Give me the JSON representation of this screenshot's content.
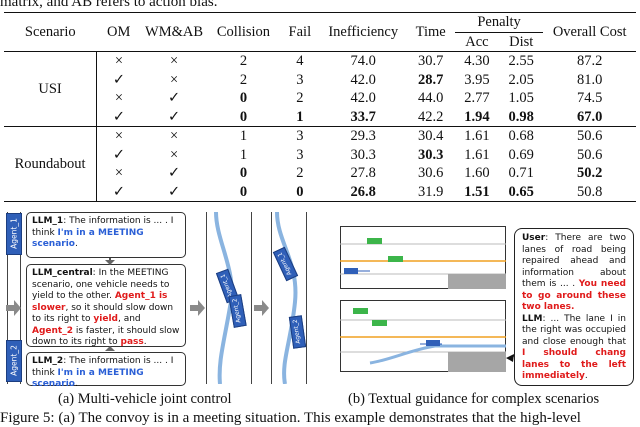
{
  "header_fragment": "matrix, and AB refers to action bias.",
  "table": {
    "headers": {
      "scenario": "Scenario",
      "om": "OM",
      "wmab": "WM&AB",
      "collision": "Collision",
      "fail": "Fail",
      "inefficiency": "Inefficiency",
      "time": "Time",
      "penalty": "Penalty",
      "acc": "Acc",
      "dist": "Dist",
      "overall": "Overall Cost"
    },
    "groups": [
      {
        "name": "USI",
        "rows": [
          {
            "om": "×",
            "wmab": "×",
            "collision": "2",
            "fail": "4",
            "inefficiency": "74.0",
            "time": "30.7",
            "acc": "4.30",
            "dist": "2.55",
            "overall": "87.2"
          },
          {
            "om": "✓",
            "wmab": "×",
            "collision": "2",
            "fail": "3",
            "inefficiency": "42.0",
            "time": "28.7",
            "acc": "3.95",
            "dist": "2.05",
            "overall": "81.0"
          },
          {
            "om": "×",
            "wmab": "✓",
            "collision": "0",
            "fail": "2",
            "inefficiency": "42.0",
            "time": "44.0",
            "acc": "2.77",
            "dist": "1.05",
            "overall": "74.5"
          },
          {
            "om": "✓",
            "wmab": "✓",
            "collision": "0",
            "fail": "1",
            "inefficiency": "33.7",
            "time": "42.2",
            "acc": "1.94",
            "dist": "0.98",
            "overall": "67.0"
          }
        ]
      },
      {
        "name": "Roundabout",
        "rows": [
          {
            "om": "×",
            "wmab": "×",
            "collision": "1",
            "fail": "3",
            "inefficiency": "29.3",
            "time": "30.4",
            "acc": "1.61",
            "dist": "0.68",
            "overall": "50.6"
          },
          {
            "om": "✓",
            "wmab": "×",
            "collision": "1",
            "fail": "3",
            "inefficiency": "30.3",
            "time": "30.3",
            "acc": "1.61",
            "dist": "0.69",
            "overall": "50.6"
          },
          {
            "om": "×",
            "wmab": "✓",
            "collision": "0",
            "fail": "2",
            "inefficiency": "27.8",
            "time": "30.6",
            "acc": "1.60",
            "dist": "0.71",
            "overall": "50.2"
          },
          {
            "om": "✓",
            "wmab": "✓",
            "collision": "0",
            "fail": "0",
            "inefficiency": "26.8",
            "time": "31.9",
            "acc": "1.51",
            "dist": "0.65",
            "overall": "50.8"
          }
        ]
      }
    ]
  },
  "fig_left": {
    "agent1": "Agent_1",
    "agent2": "Agent_2",
    "llm1_who": "LLM_1",
    "llm1_text": ": The information is ... . I think ",
    "llm1_blue": "I'm in a MEETING scenario",
    "llm1_end": ".",
    "central_who": "LLM_central",
    "central_t1": ": In the MEETING scenario, one vehicle needs to yield to the other. ",
    "central_r1": "Agent_1 is slower",
    "central_t2": ", so it should slow down to its right to ",
    "central_r2": "yield",
    "central_t3": ", and ",
    "central_r3": "Agent_2",
    "central_t4": " is faster, it should slow down to its right to ",
    "central_r4": "pass",
    "central_t5": ".",
    "llm2_who": "LLM_2",
    "llm2_text": ": The information is ... . I think ",
    "llm2_blue": "I'm in a MEETING scenario",
    "llm2_end": ".",
    "caption": "(a)  Multi-vehicle joint control"
  },
  "fig_right": {
    "user_who": "User",
    "user_t1": ": There are two lanes of road being repaired ahead and information about them is ... . ",
    "user_blue": "You need to go around these two lanes.",
    "llm_who": "LLM",
    "llm_t1": ": ... The lane I in the right was occupied and close enough that ",
    "llm_red": "I should chang lanes to the left immediately",
    "llm_end": ".",
    "caption": "(b)  Textual guidance for complex scenarios"
  },
  "footer_fragment": "Figure 5: (a) The convoy is in a meeting situation. This example demonstrates that the high-level",
  "colors": {
    "blue_text": "#2a5fd6",
    "red_text": "#e01b1b",
    "agent_blue": "#2f5fb8",
    "lane_orange": "#f0a020",
    "car_green": "#3cb54a",
    "car_blue": "#2f5fb8",
    "road_grey": "#a6a6a6"
  }
}
